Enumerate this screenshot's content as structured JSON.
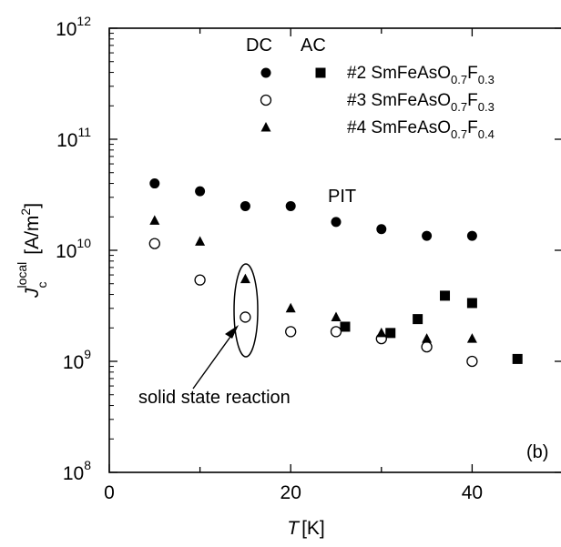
{
  "chart_data": {
    "type": "scatter",
    "panel_label": "(b)",
    "xlabel": {
      "main": "T",
      "unit": "[K]"
    },
    "ylabel": {
      "main": "J",
      "sub": "c",
      "sup": "local",
      "unit_prefix": "[A/m",
      "unit_exp": "2",
      "unit_suffix": "]"
    },
    "xlim": [
      0,
      50
    ],
    "ylim": [
      100000000.0,
      1000000000000.0
    ],
    "yscale": "log",
    "x_ticks": [
      {
        "value": 0,
        "label": "0"
      },
      {
        "value": 20,
        "label": "20"
      },
      {
        "value": 40,
        "label": "40"
      }
    ],
    "y_ticks": [
      {
        "value": 100000000.0,
        "base": "10",
        "exp": "8"
      },
      {
        "value": 1000000000.0,
        "base": "10",
        "exp": "9"
      },
      {
        "value": 10000000000.0,
        "base": "10",
        "exp": "10"
      },
      {
        "value": 100000000000.0,
        "base": "10",
        "exp": "11"
      },
      {
        "value": 1000000000000.0,
        "base": "10",
        "exp": "12"
      }
    ],
    "legend": {
      "header_dc": "DC",
      "header_ac": "AC",
      "entries": [
        {
          "label_parts": [
            "#2 SmFeAsO",
            "0.7",
            "F",
            "0.3"
          ],
          "dc_marker": "filled-circle",
          "ac_marker": "filled-square"
        },
        {
          "label_parts": [
            "#3 SmFeAsO",
            "0.7",
            "F",
            "0.3"
          ],
          "dc_marker": "open-circle",
          "ac_marker": ""
        },
        {
          "label_parts": [
            "#4 SmFeAsO",
            "0.7",
            "F",
            "0.4"
          ],
          "dc_marker": "filled-triangle",
          "ac_marker": ""
        }
      ]
    },
    "annotations": {
      "pit": "PIT",
      "ssr": "solid state reaction"
    },
    "series": [
      {
        "name": "#2 DC",
        "marker": "filled-circle",
        "points": [
          [
            5,
            40000000000.0
          ],
          [
            10,
            34000000000.0
          ],
          [
            15,
            25000000000.0
          ],
          [
            20,
            25000000000.0
          ],
          [
            25,
            18000000000.0
          ],
          [
            30,
            15500000000.0
          ],
          [
            35,
            13500000000.0
          ],
          [
            40,
            13500000000.0
          ]
        ]
      },
      {
        "name": "#2 AC",
        "marker": "filled-square",
        "points": [
          [
            26,
            2050000000.0
          ],
          [
            31,
            1800000000.0
          ],
          [
            34,
            2400000000.0
          ],
          [
            37,
            3900000000.0
          ],
          [
            40,
            3350000000.0
          ],
          [
            45,
            1050000000.0
          ]
        ]
      },
      {
        "name": "#3 DC",
        "marker": "open-circle",
        "points": [
          [
            5,
            11500000000.0
          ],
          [
            10,
            5400000000.0
          ],
          [
            15,
            2500000000.0
          ],
          [
            20,
            1850000000.0
          ],
          [
            25,
            1850000000.0
          ],
          [
            30,
            1600000000.0
          ],
          [
            35,
            1350000000.0
          ],
          [
            40,
            1000000000.0
          ]
        ]
      },
      {
        "name": "#4 DC",
        "marker": "filled-triangle",
        "points": [
          [
            5,
            18500000000.0
          ],
          [
            10,
            12000000000.0
          ],
          [
            15,
            5500000000.0
          ],
          [
            20,
            3000000000.0
          ],
          [
            25,
            2500000000.0
          ],
          [
            30,
            1800000000.0
          ],
          [
            35,
            1600000000.0
          ],
          [
            40,
            1600000000.0
          ]
        ]
      }
    ]
  }
}
